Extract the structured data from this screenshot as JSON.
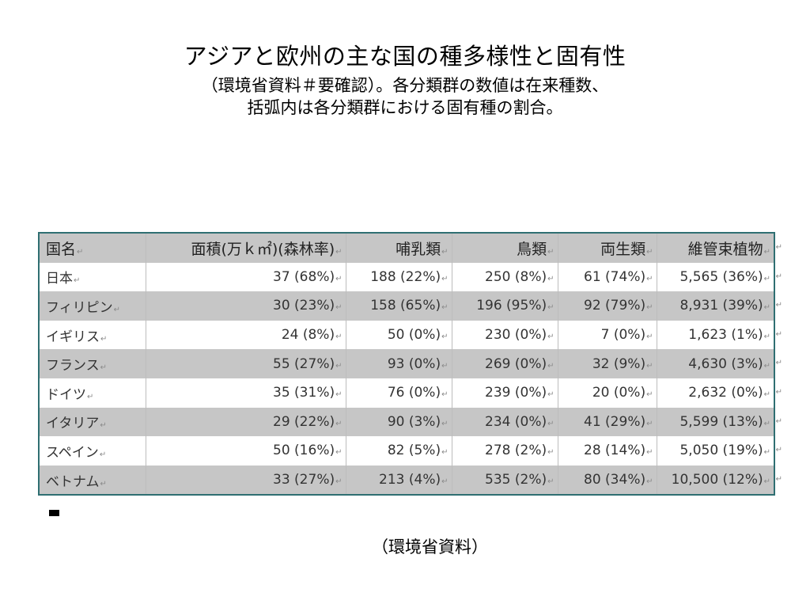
{
  "header": {
    "title": "アジアと欧州の主な国の種多様性と固有性",
    "subtitle_line1": "（環境省資料＃要確認）。各分類群の数値は在来種数、",
    "subtitle_line2": "括弧内は各分類群における固有種の割合。"
  },
  "table": {
    "headers": [
      "国名",
      "面積(万ｋ㎡)(森林率)",
      "哺乳類",
      "鳥類",
      "両生類",
      "維管束植物"
    ],
    "rows": [
      [
        "日本",
        "37 (68%)",
        "188 (22%)",
        "250 (8%)",
        "61 (74%)",
        "5,565 (36%)"
      ],
      [
        "フィリピン",
        "30 (23%)",
        "158 (65%)",
        "196 (95%)",
        "92 (79%)",
        "8,931 (39%)"
      ],
      [
        "イギリス",
        "24 (8%)",
        "50 (0%)",
        "230 (0%)",
        "7 (0%)",
        "1,623 (1%)"
      ],
      [
        "フランス",
        "55 (27%)",
        "93 (0%)",
        "269 (0%)",
        "32 (9%)",
        "4,630 (3%)"
      ],
      [
        "ドイツ",
        "35 (31%)",
        "76 (0%)",
        "239 (0%)",
        "20 (0%)",
        "2,632 (0%)"
      ],
      [
        "イタリア",
        "29 (22%)",
        "90 (3%)",
        "234 (0%)",
        "41 (29%)",
        "5,599 (13%)"
      ],
      [
        "スペイン",
        "50 (16%)",
        "82 (5%)",
        "278 (2%)",
        "28 (14%)",
        "5,050 (19%)"
      ],
      [
        "ベトナム",
        "33 (27%)",
        "213 (4%)",
        "535 (2%)",
        "80 (34%)",
        "10,500 (12%)"
      ]
    ]
  },
  "footer": {
    "source": "（環境省資料）"
  }
}
